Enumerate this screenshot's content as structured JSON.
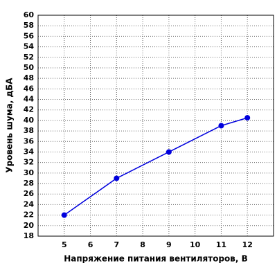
{
  "chart_data": {
    "type": "line",
    "x_label": "Напряжение питания вентиляторов, В",
    "y_label": "Уровень шума, дБА",
    "series": [
      {
        "name": "noise",
        "color": "#0000dd",
        "x": [
          5,
          7,
          9,
          11,
          12
        ],
        "values": [
          22,
          29,
          34,
          39,
          40.5
        ]
      }
    ],
    "xlim": [
      4,
      13
    ],
    "xticks": [
      5,
      6,
      7,
      8,
      9,
      10,
      11,
      12
    ],
    "ylim": [
      18,
      60
    ],
    "yticks": [
      18,
      20,
      22,
      24,
      26,
      28,
      30,
      32,
      34,
      36,
      38,
      40,
      42,
      44,
      46,
      48,
      50,
      52,
      54,
      56,
      58,
      60
    ],
    "grid": true
  }
}
